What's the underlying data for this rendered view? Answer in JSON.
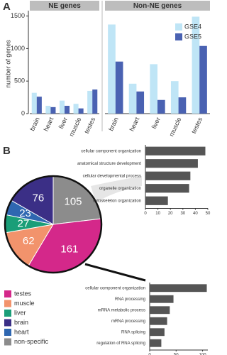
{
  "chart_data": [
    {
      "type": "grouped-bar",
      "panel": "A",
      "ylabel": "number of genes",
      "ylim": [
        0,
        1550
      ],
      "yticks": [
        0,
        500,
        1000,
        1500
      ],
      "groups": [
        {
          "name": "NE genes",
          "categories": [
            "brain",
            "heart",
            "liver",
            "muscle",
            "testes"
          ],
          "series": [
            {
              "name": "GSE4",
              "color": "#bfe5f6",
              "values": [
                320,
                120,
                200,
                150,
                350
              ]
            },
            {
              "name": "GSE5",
              "color": "#4a62b2",
              "values": [
                260,
                100,
                120,
                80,
                370
              ]
            }
          ]
        },
        {
          "name": "Non-NE genes",
          "categories": [
            "brain",
            "heart",
            "liver",
            "muscle",
            "testes"
          ],
          "series": [
            {
              "name": "GSE4",
              "color": "#bfe5f6",
              "values": [
                1370,
                460,
                760,
                500,
                1490
              ]
            },
            {
              "name": "GSE5",
              "color": "#4a62b2",
              "values": [
                800,
                340,
                210,
                250,
                1040
              ]
            }
          ]
        }
      ]
    },
    {
      "type": "pie",
      "panel": "B",
      "categories": [
        "testes",
        "muscle",
        "liver",
        "brain",
        "heart",
        "non-specific"
      ],
      "values": [
        161,
        62,
        27,
        76,
        23,
        105
      ],
      "colors": [
        "#d4288a",
        "#f2936c",
        "#1a9e78",
        "#3b2f86",
        "#2f67b1",
        "#8c8c8c"
      ]
    },
    {
      "type": "barh",
      "color": "#555555",
      "xlim": [
        0,
        50
      ],
      "xticks": [
        0,
        10,
        20,
        30,
        40,
        50
      ],
      "categories": [
        "cellular component organization",
        "anatomical structure development",
        "cellular developmental process",
        "organelle organization",
        "cytoskeleton organization"
      ],
      "values": [
        48,
        42,
        36,
        35,
        18
      ]
    },
    {
      "type": "barh",
      "color": "#555555",
      "xlim": [
        0,
        110
      ],
      "xticks": [
        0,
        50,
        100
      ],
      "categories": [
        "cellular component organization",
        "RNA processing",
        "mRNA metabolic process",
        "mRNA processing",
        "RNA splicing",
        "regulation of RNA splicing"
      ],
      "values": [
        108,
        45,
        38,
        33,
        28,
        22
      ]
    }
  ]
}
